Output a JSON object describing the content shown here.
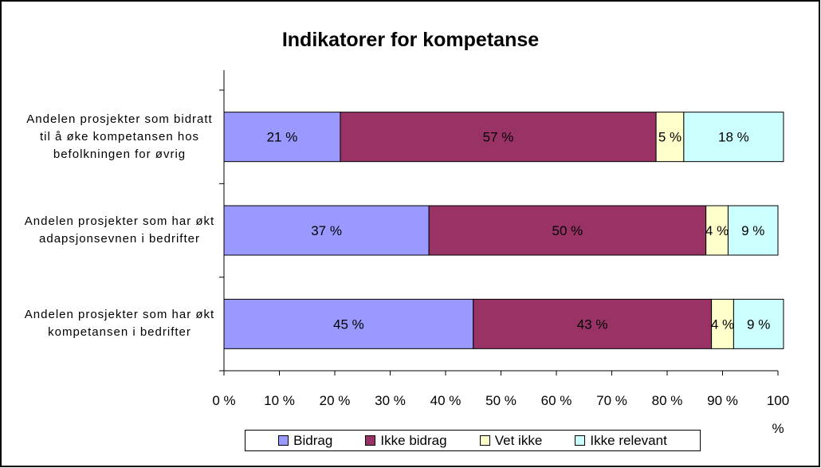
{
  "chart_data": {
    "type": "stacked_barh",
    "title": "Indikatorer for kompetanse",
    "categories": [
      "Andelen prosjekter som bidratt til å øke kompetansen hos befolkningen for øvrig",
      "Andelen prosjekter som har økt adapsjonsevnen i bedrifter",
      "Andelen prosjekter som har økt kompetansen i bedrifter"
    ],
    "series": [
      {
        "name": "Bidrag",
        "color": "#9999ff",
        "values": [
          21,
          37,
          45
        ],
        "value_labels": [
          "21 %",
          "37 %",
          "45 %"
        ]
      },
      {
        "name": "Ikke bidrag",
        "color": "#993366",
        "values": [
          57,
          50,
          43
        ],
        "value_labels": [
          "57 %",
          "50 %",
          "43 %"
        ]
      },
      {
        "name": "Vet ikke",
        "color": "#ffffcc",
        "values": [
          5,
          4,
          4
        ],
        "value_labels": [
          "5 %",
          "4 %",
          "4 %"
        ]
      },
      {
        "name": "Ikke relevant",
        "color": "#ccffff",
        "values": [
          18,
          9,
          9
        ],
        "value_labels": [
          "18 %",
          "9 %",
          "9 %"
        ]
      }
    ],
    "xlim": [
      0,
      100
    ],
    "xticks": [
      {
        "value": 0,
        "label": "0 %"
      },
      {
        "value": 10,
        "label": "10 %"
      },
      {
        "value": 20,
        "label": "20 %"
      },
      {
        "value": 30,
        "label": "30 %"
      },
      {
        "value": 40,
        "label": "40 %"
      },
      {
        "value": 50,
        "label": "50 %"
      },
      {
        "value": 60,
        "label": "60 %"
      },
      {
        "value": 70,
        "label": "70 %"
      },
      {
        "value": 80,
        "label": "80 %"
      },
      {
        "value": 90,
        "label": "90 %"
      },
      {
        "value": 100,
        "label": "100 %"
      }
    ],
    "legend": "bottom"
  }
}
